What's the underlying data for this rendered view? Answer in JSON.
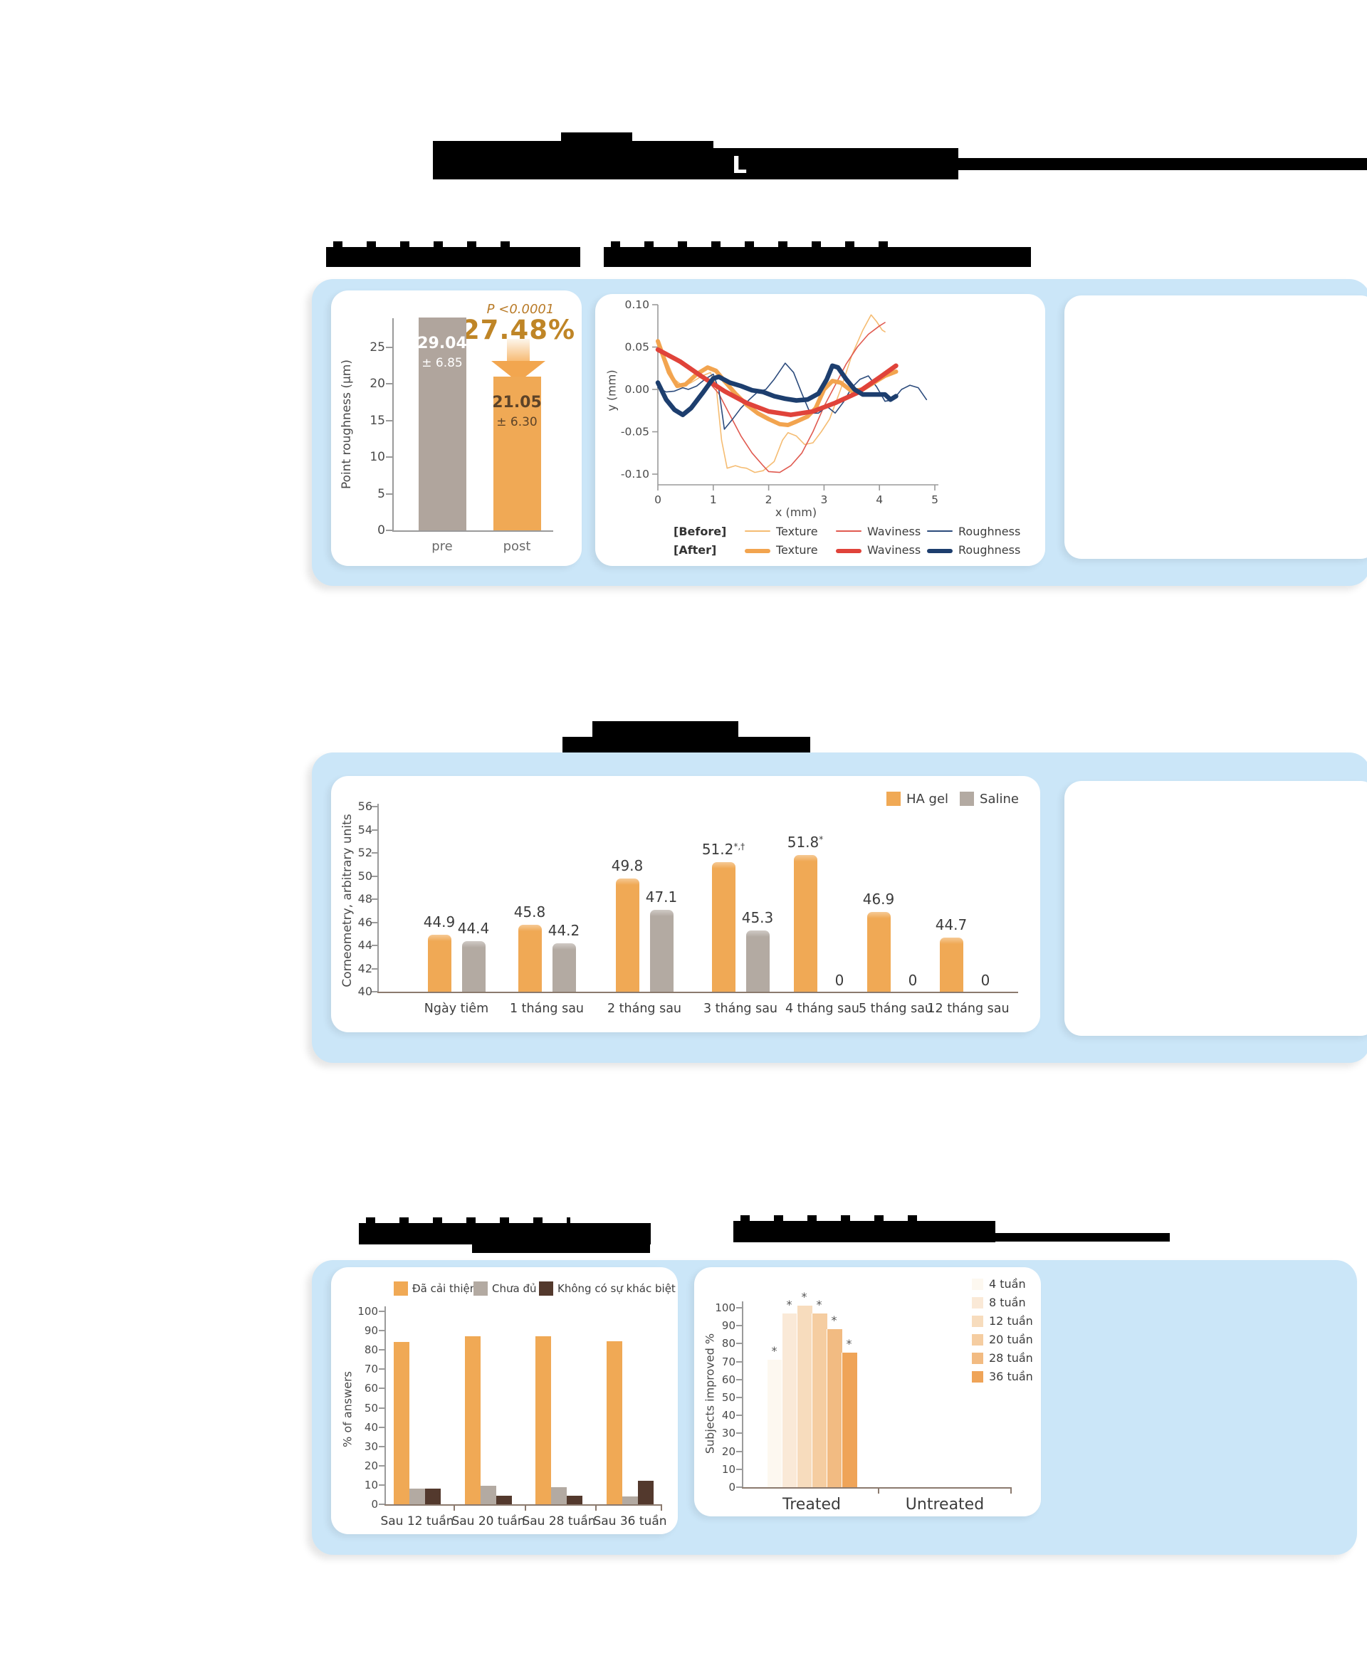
{
  "title": {
    "visible_letter": "L"
  },
  "colors": {
    "panel_blue": "#cbe6f8",
    "orange": "#f0a955",
    "taupe_gray": "#b0a59d",
    "dark_brown": "#53392d",
    "gold_text": "#bf8526",
    "p_text": "#b97b28",
    "navy": "#1d3e6e",
    "red": "#e0433a",
    "axis_gray": "#8f8f8f",
    "baseline_brown": "#8b7a6e"
  },
  "chart_data": [
    {
      "id": "point-roughness",
      "type": "bar",
      "ylabel": "Point roughness (μm)",
      "categories": [
        "pre",
        "post"
      ],
      "values": [
        29.04,
        21.05
      ],
      "value_labels": [
        [
          "29.04",
          "± 6.85"
        ],
        [
          "21.05",
          "± 6.30"
        ]
      ],
      "label_colors": [
        "#ffffff",
        "#5d4328"
      ],
      "bar_colors": [
        "#b0a59d",
        "#f0a955"
      ],
      "yticks": [
        0,
        5,
        10,
        15,
        20,
        25
      ],
      "ylim": [
        0,
        29.5
      ],
      "annotation_p": "P <0.0001",
      "annotation_pct": "27.48%"
    },
    {
      "id": "skin-profile",
      "type": "line",
      "xlabel": "x (mm)",
      "ylabel": "y (mm)",
      "xticks": [
        "0",
        "1",
        "2",
        "3",
        "4",
        "5"
      ],
      "ytick_labels": [
        "0.10",
        "0.05",
        "0.00",
        "-0.05",
        "-0.10"
      ],
      "yticks": [
        0.1,
        0.05,
        0,
        -0.05,
        -0.1
      ],
      "xlim": [
        0,
        5
      ],
      "ylim": [
        -0.115,
        0.115
      ],
      "legend": {
        "before_label": "[Before]",
        "after_label": "[After]",
        "items": [
          "Texture",
          "Waviness",
          "Roughness"
        ]
      },
      "series": [
        {
          "name": "Texture",
          "phase": "Before",
          "color": "#f5bc72",
          "width": 1.6,
          "points": [
            [
              0,
              0.057
            ],
            [
              0.15,
              0.035
            ],
            [
              0.3,
              0.012
            ],
            [
              0.45,
              0.004
            ],
            [
              0.6,
              0.008
            ],
            [
              0.8,
              0.016
            ],
            [
              0.95,
              0.02
            ],
            [
              1.05,
              0.005
            ],
            [
              1.15,
              -0.06
            ],
            [
              1.25,
              -0.093
            ],
            [
              1.4,
              -0.09
            ],
            [
              1.5,
              -0.092
            ],
            [
              1.6,
              -0.093
            ],
            [
              1.75,
              -0.098
            ],
            [
              1.9,
              -0.096
            ],
            [
              2.1,
              -0.085
            ],
            [
              2.25,
              -0.06
            ],
            [
              2.35,
              -0.051
            ],
            [
              2.5,
              -0.055
            ],
            [
              2.65,
              -0.065
            ],
            [
              2.8,
              -0.063
            ],
            [
              2.95,
              -0.05
            ],
            [
              3.1,
              -0.035
            ],
            [
              3.3,
              0
            ],
            [
              3.5,
              0.04
            ],
            [
              3.7,
              0.07
            ],
            [
              3.85,
              0.088
            ],
            [
              3.95,
              0.08
            ],
            [
              4.05,
              0.07
            ],
            [
              4.1,
              0.068
            ]
          ]
        },
        {
          "name": "Waviness",
          "phase": "Before",
          "color": "#e05a50",
          "width": 1.6,
          "points": [
            [
              0,
              0.046
            ],
            [
              0.3,
              0.036
            ],
            [
              0.6,
              0.024
            ],
            [
              0.9,
              0.01
            ],
            [
              1.1,
              -0.005
            ],
            [
              1.3,
              -0.03
            ],
            [
              1.5,
              -0.055
            ],
            [
              1.7,
              -0.075
            ],
            [
              1.9,
              -0.09
            ],
            [
              2.0,
              -0.097
            ],
            [
              2.2,
              -0.098
            ],
            [
              2.4,
              -0.09
            ],
            [
              2.6,
              -0.075
            ],
            [
              2.8,
              -0.05
            ],
            [
              3.0,
              -0.02
            ],
            [
              3.2,
              0.005
            ],
            [
              3.4,
              0.03
            ],
            [
              3.6,
              0.05
            ],
            [
              3.8,
              0.065
            ],
            [
              4.0,
              0.075
            ],
            [
              4.1,
              0.079
            ]
          ]
        },
        {
          "name": "Roughness",
          "phase": "Before",
          "color": "#2c4b7c",
          "width": 1.6,
          "points": [
            [
              0,
              0.002
            ],
            [
              0.15,
              -0.003
            ],
            [
              0.3,
              -0.002
            ],
            [
              0.45,
              0.002
            ],
            [
              0.55,
              0
            ],
            [
              0.7,
              0.004
            ],
            [
              0.85,
              0.012
            ],
            [
              1.0,
              0.018
            ],
            [
              1.1,
              0
            ],
            [
              1.2,
              -0.047
            ],
            [
              1.35,
              -0.035
            ],
            [
              1.5,
              -0.022
            ],
            [
              1.65,
              -0.012
            ],
            [
              1.8,
              -0.003
            ],
            [
              1.95,
              0
            ],
            [
              2.1,
              0.012
            ],
            [
              2.3,
              0.031
            ],
            [
              2.45,
              0.02
            ],
            [
              2.6,
              -0.005
            ],
            [
              2.75,
              -0.028
            ],
            [
              2.9,
              -0.028
            ],
            [
              3.05,
              -0.02
            ],
            [
              3.2,
              -0.028
            ],
            [
              3.35,
              -0.015
            ],
            [
              3.5,
              0.002
            ],
            [
              3.65,
              0.012
            ],
            [
              3.8,
              0.016
            ],
            [
              3.95,
              0.003
            ],
            [
              4.1,
              -0.014
            ],
            [
              4.25,
              -0.012
            ],
            [
              4.4,
              0
            ],
            [
              4.55,
              0.005
            ],
            [
              4.7,
              0.002
            ],
            [
              4.85,
              -0.012
            ]
          ]
        },
        {
          "name": "Texture",
          "phase": "After",
          "color": "#f2a44f",
          "width": 6,
          "points": [
            [
              0,
              0.057
            ],
            [
              0.2,
              0.02
            ],
            [
              0.35,
              0.004
            ],
            [
              0.5,
              0.006
            ],
            [
              0.7,
              0.018
            ],
            [
              0.9,
              0.026
            ],
            [
              1.05,
              0.022
            ],
            [
              1.2,
              0.01
            ],
            [
              1.4,
              -0.005
            ],
            [
              1.6,
              -0.018
            ],
            [
              1.8,
              -0.028
            ],
            [
              2.0,
              -0.035
            ],
            [
              2.2,
              -0.041
            ],
            [
              2.35,
              -0.042
            ],
            [
              2.5,
              -0.038
            ],
            [
              2.7,
              -0.032
            ],
            [
              2.85,
              -0.022
            ],
            [
              3.0,
              0
            ],
            [
              3.15,
              0.01
            ],
            [
              3.3,
              0.008
            ],
            [
              3.5,
              -0.002
            ],
            [
              3.7,
              0
            ],
            [
              3.9,
              0.008
            ],
            [
              4.1,
              0.016
            ],
            [
              4.3,
              0.021
            ]
          ]
        },
        {
          "name": "Waviness",
          "phase": "After",
          "color": "#e0433a",
          "width": 6.5,
          "points": [
            [
              0,
              0.047
            ],
            [
              0.4,
              0.033
            ],
            [
              0.8,
              0.015
            ],
            [
              1.2,
              -0.002
            ],
            [
              1.6,
              -0.016
            ],
            [
              2.0,
              -0.026
            ],
            [
              2.4,
              -0.03
            ],
            [
              2.8,
              -0.026
            ],
            [
              3.2,
              -0.016
            ],
            [
              3.6,
              -0.004
            ],
            [
              4.0,
              0.014
            ],
            [
              4.3,
              0.028
            ]
          ]
        },
        {
          "name": "Roughness",
          "phase": "After",
          "color": "#1d3e6e",
          "width": 6.5,
          "points": [
            [
              0,
              0.008
            ],
            [
              0.15,
              -0.012
            ],
            [
              0.3,
              -0.024
            ],
            [
              0.45,
              -0.03
            ],
            [
              0.6,
              -0.022
            ],
            [
              0.8,
              -0.005
            ],
            [
              1.0,
              0.013
            ],
            [
              1.1,
              0.015
            ],
            [
              1.3,
              0.008
            ],
            [
              1.5,
              0.004
            ],
            [
              1.7,
              -0.001
            ],
            [
              1.9,
              -0.003
            ],
            [
              2.1,
              -0.008
            ],
            [
              2.3,
              -0.011
            ],
            [
              2.5,
              -0.013
            ],
            [
              2.7,
              -0.012
            ],
            [
              2.9,
              -0.005
            ],
            [
              3.05,
              0.012
            ],
            [
              3.15,
              0.028
            ],
            [
              3.25,
              0.026
            ],
            [
              3.4,
              0.012
            ],
            [
              3.55,
              0
            ],
            [
              3.7,
              -0.006
            ],
            [
              3.9,
              -0.006
            ],
            [
              4.1,
              -0.006
            ],
            [
              4.2,
              -0.012
            ],
            [
              4.3,
              -0.008
            ]
          ]
        }
      ]
    },
    {
      "id": "corneometry",
      "type": "bar",
      "ylabel": "Corneometry, arbitrary units",
      "legend": [
        {
          "label": "HA gel",
          "color": "#f0a955"
        },
        {
          "label": "Saline",
          "color": "#b3aaa2"
        }
      ],
      "categories": [
        "Ngày tiêm",
        "1 tháng sau",
        "2 tháng sau",
        "3 tháng sau",
        "4 tháng sau",
        "5 tháng sau",
        "12 tháng sau"
      ],
      "series": [
        {
          "name": "HA gel",
          "color": "#f0a955",
          "values": [
            44.9,
            45.8,
            49.8,
            51.2,
            51.8,
            46.9,
            44.7
          ],
          "labels": [
            "44.9",
            "45.8",
            "49.8",
            "51.2",
            "51.8",
            "46.9",
            "44.7"
          ],
          "sups": [
            "",
            "",
            "",
            "*,†",
            "*",
            "",
            ""
          ]
        },
        {
          "name": "Saline",
          "color": "#b3aaa2",
          "values": [
            44.4,
            44.2,
            47.1,
            45.3,
            null,
            null,
            null
          ],
          "labels": [
            "44.4",
            "44.2",
            "47.1",
            "45.3",
            "0",
            "0",
            "0"
          ],
          "sups": [
            "",
            "",
            "",
            "",
            "",
            "",
            ""
          ]
        }
      ],
      "yticks": [
        40,
        42,
        44,
        46,
        48,
        50,
        52,
        54,
        56
      ],
      "ylim": [
        40,
        56
      ]
    },
    {
      "id": "answers",
      "type": "bar",
      "ylabel": "% of answers",
      "legend": [
        {
          "label": "Đã cải thiện",
          "color": "#f0a955"
        },
        {
          "label": "Chưa đủ",
          "color": "#b3aaa2"
        },
        {
          "label": "Không có sự khác biệt",
          "color": "#53392d"
        }
      ],
      "categories": [
        "Sau 12 tuần",
        "Sau 20 tuần",
        "Sau 28 tuần",
        "Sau 36 tuần"
      ],
      "series": [
        {
          "name": "Đã cải thiện",
          "color": "#f0a955",
          "values": [
            84,
            87,
            87,
            84.5
          ]
        },
        {
          "name": "Chưa đủ",
          "color": "#b3aaa2",
          "values": [
            8,
            9.5,
            9,
            4
          ]
        },
        {
          "name": "Không có sự khác biệt",
          "color": "#53392d",
          "values": [
            8,
            4.5,
            4.5,
            12
          ]
        }
      ],
      "yticks": [
        0,
        10,
        20,
        30,
        40,
        50,
        60,
        70,
        80,
        90,
        100
      ],
      "ylim": [
        0,
        100
      ]
    },
    {
      "id": "subjects-improved",
      "type": "bar",
      "ylabel": "Subjects improved %",
      "groups": [
        "Treated",
        "Untreated"
      ],
      "legend": [
        {
          "label": "4 tuần",
          "color": "#fdf8f0"
        },
        {
          "label": "8 tuần",
          "color": "#fae9d7"
        },
        {
          "label": "12 tuần",
          "color": "#f7dcbd"
        },
        {
          "label": "20 tuần",
          "color": "#f5cda1"
        },
        {
          "label": "28 tuần",
          "color": "#f2bb82"
        },
        {
          "label": "36 tuần",
          "color": "#efa458"
        }
      ],
      "treated_values": [
        71,
        97,
        101,
        97,
        88,
        75
      ],
      "untreated_values": [
        0,
        0,
        0,
        0,
        0,
        0
      ],
      "significance_marker": "*",
      "yticks": [
        0,
        10,
        20,
        30,
        40,
        50,
        60,
        70,
        80,
        90,
        100
      ],
      "ylim": [
        0,
        100
      ]
    }
  ]
}
